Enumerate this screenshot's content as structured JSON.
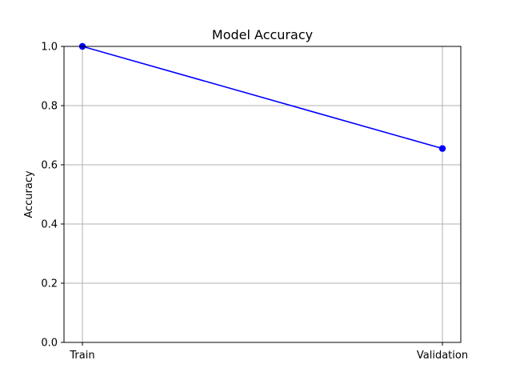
{
  "chart_data": {
    "type": "line",
    "title": "Model Accuracy",
    "xlabel": "",
    "ylabel": "Accuracy",
    "categories": [
      "Train",
      "Validation"
    ],
    "series": [
      {
        "values": [
          1.0,
          0.655
        ],
        "color": "#0000ff",
        "marker": "circle"
      }
    ],
    "ylim": [
      0,
      1
    ],
    "yticks": [
      "0.0",
      "0.2",
      "0.4",
      "0.6",
      "0.8",
      "1.0"
    ],
    "ytick_values": [
      0,
      0.2,
      0.4,
      0.6,
      0.8,
      1.0
    ],
    "grid": true,
    "grid_color": "#b0b0b0",
    "legend": false
  }
}
